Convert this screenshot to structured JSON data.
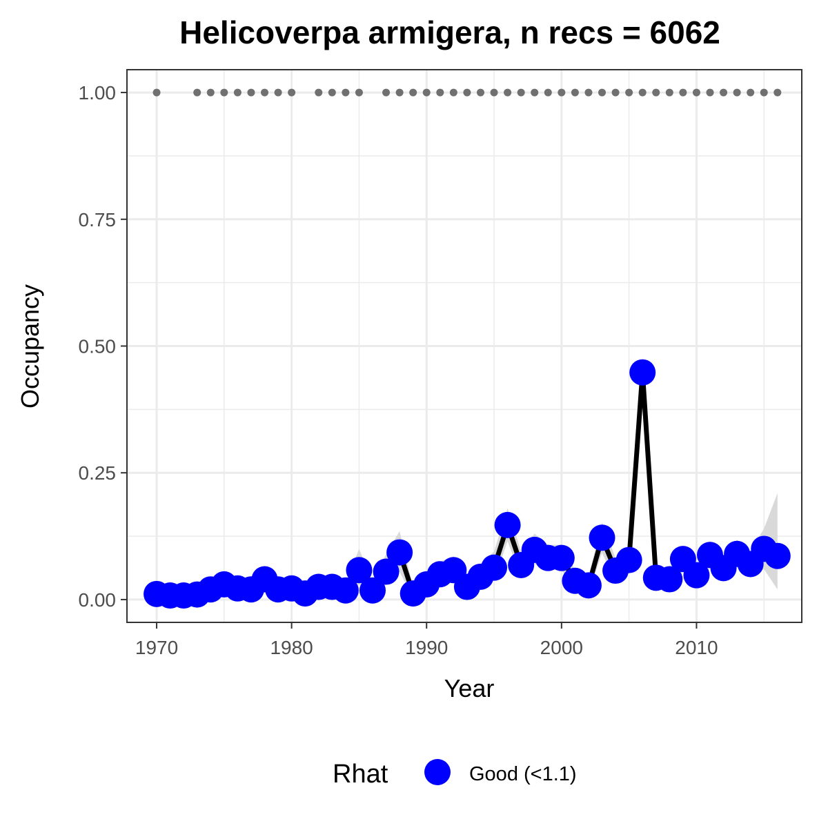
{
  "chart_data": {
    "type": "line",
    "title": "Helicoverpa armigera, n recs = 6062",
    "xlabel": "Year",
    "ylabel": "Occupancy",
    "xlim": [
      1967.8,
      2017.8
    ],
    "ylim": [
      -0.045,
      1.045
    ],
    "x_ticks": [
      1970,
      1980,
      1990,
      2000,
      2010
    ],
    "x_tick_labels": [
      "1970",
      "1980",
      "1990",
      "2000",
      "2010"
    ],
    "y_ticks": [
      0,
      0.25,
      0.5,
      0.75,
      1.0
    ],
    "y_tick_labels": [
      "0.00",
      "0.25",
      "0.50",
      "0.75",
      "1.00"
    ],
    "grid": true,
    "legend_placement": "bottom",
    "legend": {
      "title": "Rhat",
      "entries": [
        {
          "label": "Good (<1.1)",
          "color": "#0000ff"
        }
      ]
    },
    "colors": {
      "points": "#0000ff",
      "line": "#000000",
      "ribbon": "#d9d9d9",
      "record_dots": "#707070",
      "grid": "#ebebeb",
      "panel_border": "#333333"
    },
    "series": [
      {
        "x": [
          1970,
          1971,
          1972,
          1973,
          1974,
          1975,
          1976,
          1977,
          1978,
          1979,
          1980,
          1981,
          1982,
          1983,
          1984,
          1985,
          1986,
          1987,
          1988,
          1989,
          1990,
          1991,
          1992,
          1993,
          1994,
          1995,
          1996,
          1997,
          1998,
          1999,
          2000,
          2001,
          2002,
          2003,
          2004,
          2005,
          2006,
          2007,
          2008,
          2009,
          2010,
          2011,
          2012,
          2013,
          2014,
          2015,
          2016
        ],
        "values": [
          0.011,
          0.008,
          0.008,
          0.01,
          0.02,
          0.03,
          0.022,
          0.02,
          0.04,
          0.02,
          0.022,
          0.012,
          0.025,
          0.025,
          0.018,
          0.058,
          0.018,
          0.055,
          0.093,
          0.012,
          0.03,
          0.05,
          0.058,
          0.025,
          0.045,
          0.063,
          0.147,
          0.068,
          0.098,
          0.082,
          0.082,
          0.037,
          0.028,
          0.122,
          0.057,
          0.078,
          0.448,
          0.043,
          0.04,
          0.08,
          0.048,
          0.088,
          0.062,
          0.09,
          0.07,
          0.1,
          0.086
        ],
        "lower": [
          0.002,
          0.001,
          0.001,
          0.002,
          0.008,
          0.015,
          0.01,
          0.008,
          0.022,
          0.008,
          0.01,
          0.003,
          0.012,
          0.012,
          0.006,
          0.03,
          0.005,
          0.03,
          0.055,
          0.003,
          0.015,
          0.03,
          0.035,
          0.01,
          0.025,
          0.038,
          0.115,
          0.045,
          0.07,
          0.058,
          0.058,
          0.02,
          0.012,
          0.092,
          0.035,
          0.052,
          0.42,
          0.025,
          0.022,
          0.055,
          0.028,
          0.062,
          0.04,
          0.064,
          0.045,
          0.06,
          0.02
        ],
        "upper": [
          0.025,
          0.02,
          0.02,
          0.022,
          0.035,
          0.05,
          0.038,
          0.035,
          0.06,
          0.035,
          0.038,
          0.025,
          0.04,
          0.042,
          0.032,
          0.1,
          0.035,
          0.09,
          0.135,
          0.025,
          0.05,
          0.075,
          0.085,
          0.045,
          0.07,
          0.095,
          0.18,
          0.095,
          0.13,
          0.108,
          0.108,
          0.058,
          0.046,
          0.152,
          0.082,
          0.105,
          0.478,
          0.065,
          0.062,
          0.105,
          0.07,
          0.115,
          0.086,
          0.118,
          0.096,
          0.14,
          0.21
        ]
      }
    ],
    "record_years": [
      1970,
      1973,
      1974,
      1975,
      1976,
      1977,
      1978,
      1979,
      1980,
      1982,
      1983,
      1984,
      1985,
      1987,
      1988,
      1989,
      1990,
      1991,
      1992,
      1993,
      1994,
      1995,
      1996,
      1997,
      1998,
      1999,
      2000,
      2001,
      2002,
      2003,
      2004,
      2005,
      2006,
      2007,
      2008,
      2009,
      2010,
      2011,
      2012,
      2013,
      2014,
      2015,
      2016
    ],
    "record_value": 1.0
  }
}
